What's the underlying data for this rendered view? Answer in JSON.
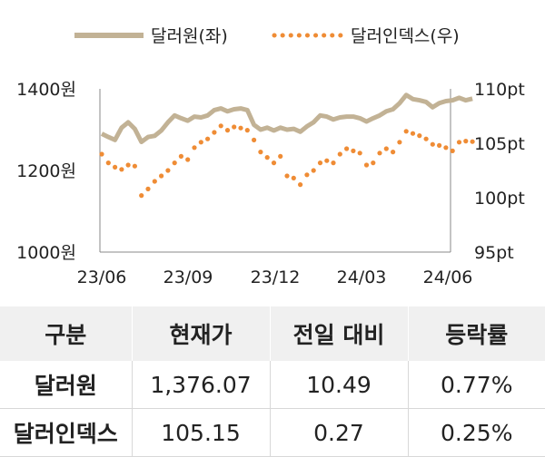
{
  "chart_data": {
    "type": "line",
    "x_ticks": [
      "23/06",
      "23/09",
      "23/12",
      "24/03",
      "24/06"
    ],
    "y_left": {
      "ticks": [
        "1400원",
        "1200원",
        "1000원"
      ],
      "range": [
        1000,
        1400
      ]
    },
    "y_right": {
      "ticks": [
        "110pt",
        "105pt",
        "100pt",
        "95pt"
      ],
      "range": [
        95,
        110
      ]
    },
    "legend_position": "top",
    "grid": false,
    "series": [
      {
        "name": "달러원(좌)",
        "axis": "left",
        "style": "solid",
        "color": "#c2b295",
        "points": [
          [
            "23/06/01",
            1290
          ],
          [
            "23/06/08",
            1282
          ],
          [
            "23/06/15",
            1275
          ],
          [
            "23/06/22",
            1305
          ],
          [
            "23/06/29",
            1318
          ],
          [
            "23/07/06",
            1302
          ],
          [
            "23/07/13",
            1270
          ],
          [
            "23/07/20",
            1282
          ],
          [
            "23/07/27",
            1285
          ],
          [
            "23/08/03",
            1298
          ],
          [
            "23/08/10",
            1318
          ],
          [
            "23/08/17",
            1335
          ],
          [
            "23/08/24",
            1328
          ],
          [
            "23/08/31",
            1322
          ],
          [
            "23/09/07",
            1332
          ],
          [
            "23/09/14",
            1330
          ],
          [
            "23/09/21",
            1335
          ],
          [
            "23/09/28",
            1348
          ],
          [
            "23/10/05",
            1352
          ],
          [
            "23/10/12",
            1345
          ],
          [
            "23/10/19",
            1350
          ],
          [
            "23/10/26",
            1352
          ],
          [
            "23/11/02",
            1348
          ],
          [
            "23/11/09",
            1312
          ],
          [
            "23/11/16",
            1300
          ],
          [
            "23/11/23",
            1305
          ],
          [
            "23/11/30",
            1298
          ],
          [
            "23/12/07",
            1305
          ],
          [
            "23/12/14",
            1300
          ],
          [
            "23/12/21",
            1302
          ],
          [
            "23/12/28",
            1295
          ],
          [
            "24/01/04",
            1308
          ],
          [
            "24/01/11",
            1318
          ],
          [
            "24/01/18",
            1335
          ],
          [
            "24/01/25",
            1332
          ],
          [
            "24/02/01",
            1325
          ],
          [
            "24/02/08",
            1330
          ],
          [
            "24/02/15",
            1332
          ],
          [
            "24/02/22",
            1332
          ],
          [
            "24/02/29",
            1328
          ],
          [
            "24/03/07",
            1320
          ],
          [
            "24/03/14",
            1328
          ],
          [
            "24/03/21",
            1335
          ],
          [
            "24/03/28",
            1345
          ],
          [
            "24/04/04",
            1350
          ],
          [
            "24/04/11",
            1365
          ],
          [
            "24/04/18",
            1385
          ],
          [
            "24/04/25",
            1375
          ],
          [
            "24/05/02",
            1372
          ],
          [
            "24/05/09",
            1368
          ],
          [
            "24/05/16",
            1355
          ],
          [
            "24/05/23",
            1365
          ],
          [
            "24/05/30",
            1370
          ],
          [
            "24/06/06",
            1372
          ],
          [
            "24/06/13",
            1378
          ],
          [
            "24/06/20",
            1372
          ],
          [
            "24/06/27",
            1376
          ]
        ]
      },
      {
        "name": "달러인덱스(우)",
        "axis": "right",
        "style": "dotted",
        "color": "#ef8c35",
        "points": [
          [
            "23/06/01",
            104.0
          ],
          [
            "23/06/08",
            103.2
          ],
          [
            "23/06/15",
            102.8
          ],
          [
            "23/06/22",
            102.6
          ],
          [
            "23/06/29",
            103.0
          ],
          [
            "23/07/06",
            102.9
          ],
          [
            "23/07/13",
            100.2
          ],
          [
            "23/07/20",
            100.8
          ],
          [
            "23/07/27",
            101.5
          ],
          [
            "23/08/03",
            102.0
          ],
          [
            "23/08/10",
            102.5
          ],
          [
            "23/08/17",
            103.2
          ],
          [
            "23/08/24",
            103.8
          ],
          [
            "23/08/31",
            103.5
          ],
          [
            "23/09/07",
            104.6
          ],
          [
            "23/09/14",
            105.1
          ],
          [
            "23/09/21",
            105.4
          ],
          [
            "23/09/28",
            106.0
          ],
          [
            "23/10/05",
            106.6
          ],
          [
            "23/10/12",
            106.2
          ],
          [
            "23/10/19",
            106.5
          ],
          [
            "23/10/26",
            106.4
          ],
          [
            "23/11/02",
            106.2
          ],
          [
            "23/11/09",
            105.3
          ],
          [
            "23/11/16",
            104.2
          ],
          [
            "23/11/23",
            103.7
          ],
          [
            "23/11/30",
            103.2
          ],
          [
            "23/12/07",
            103.8
          ],
          [
            "23/12/14",
            102.0
          ],
          [
            "23/12/21",
            101.8
          ],
          [
            "23/12/28",
            101.2
          ],
          [
            "24/01/04",
            102.1
          ],
          [
            "24/01/11",
            102.5
          ],
          [
            "24/01/18",
            103.2
          ],
          [
            "24/01/25",
            103.4
          ],
          [
            "24/02/01",
            103.2
          ],
          [
            "24/02/08",
            104.0
          ],
          [
            "24/02/15",
            104.5
          ],
          [
            "24/02/22",
            104.3
          ],
          [
            "24/02/29",
            104.1
          ],
          [
            "24/03/07",
            103.0
          ],
          [
            "24/03/14",
            103.2
          ],
          [
            "24/03/21",
            104.1
          ],
          [
            "24/03/28",
            104.5
          ],
          [
            "24/04/04",
            104.2
          ],
          [
            "24/04/11",
            105.1
          ],
          [
            "24/04/18",
            106.1
          ],
          [
            "24/04/25",
            105.9
          ],
          [
            "24/05/02",
            105.7
          ],
          [
            "24/05/09",
            105.4
          ],
          [
            "24/05/16",
            104.9
          ],
          [
            "24/05/23",
            104.8
          ],
          [
            "24/05/30",
            104.6
          ],
          [
            "24/06/06",
            104.3
          ],
          [
            "24/06/13",
            105.1
          ],
          [
            "24/06/20",
            105.2
          ],
          [
            "24/06/27",
            105.15
          ]
        ]
      }
    ]
  },
  "table": {
    "headers": [
      "구분",
      "현재가",
      "전일 대비",
      "등락률"
    ],
    "rows": [
      [
        "달러원",
        "1,376.07",
        "10.49",
        "0.77%"
      ],
      [
        "달러인덱스",
        "105.15",
        "0.27",
        "0.25%"
      ]
    ]
  }
}
